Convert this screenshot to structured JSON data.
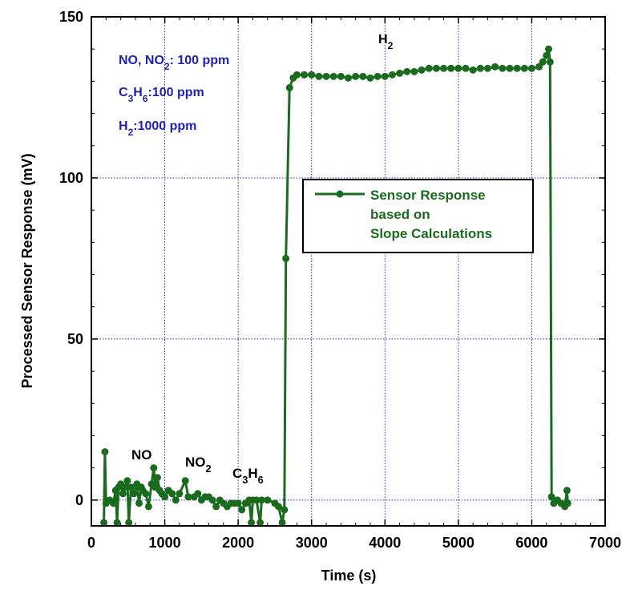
{
  "chart_data": {
    "type": "line",
    "x_label": "Time (s)",
    "y_label": "Processed Sensor Response (mV)",
    "xlim": [
      0,
      7000
    ],
    "xticks": [
      0,
      1000,
      2000,
      3000,
      4000,
      5000,
      6000,
      7000
    ],
    "ylim": [
      -8,
      150
    ],
    "yticks": [
      0,
      50,
      100,
      150
    ],
    "grid": true,
    "grid_color": "#1f2fb0",
    "legend": "upper right",
    "x": [
      170,
      185,
      200,
      250,
      300,
      330,
      350,
      370,
      400,
      430,
      460,
      490,
      510,
      540,
      580,
      620,
      650,
      680,
      700,
      740,
      780,
      820,
      850,
      870,
      900,
      930,
      960,
      1000,
      1050,
      1100,
      1150,
      1200,
      1280,
      1320,
      1400,
      1450,
      1500,
      1550,
      1600,
      1650,
      1700,
      1750,
      1800,
      1850,
      1900,
      1950,
      2000,
      2050,
      2100,
      2150,
      2180,
      2200,
      2250,
      2300,
      2320,
      2400,
      2500,
      2550,
      2600,
      2630,
      2650,
      2700,
      2750,
      2800,
      2900,
      3000,
      3100,
      3200,
      3300,
      3400,
      3500,
      3600,
      3700,
      3800,
      3900,
      4000,
      4100,
      4200,
      4300,
      4400,
      4500,
      4600,
      4700,
      4800,
      4900,
      5000,
      5100,
      5200,
      5300,
      5400,
      5500,
      5600,
      5700,
      5800,
      5900,
      6000,
      6100,
      6150,
      6200,
      6230,
      6250,
      6270,
      6300,
      6350,
      6400,
      6450,
      6480,
      6490
    ],
    "series": [
      {
        "name": "Sensor Response\nbased on\nSlope Calculations",
        "color": "#1b6b1f",
        "values": [
          -7,
          15,
          -1,
          0,
          -1,
          3,
          -7,
          4,
          5,
          2,
          4,
          6,
          -7,
          4,
          2,
          5,
          -1,
          4,
          3,
          2,
          -2,
          5,
          10,
          4,
          7,
          3,
          2,
          1,
          3,
          2,
          0,
          2,
          6,
          1,
          1,
          2,
          0,
          1,
          1,
          0,
          -2,
          0,
          -1,
          -2,
          -1,
          -1,
          -1,
          -3,
          -1,
          0,
          -7,
          0,
          0,
          -7,
          0,
          0,
          -1,
          -2,
          -7,
          -3,
          75,
          128,
          131,
          132,
          132,
          132,
          131.5,
          131.5,
          131.5,
          131.5,
          131,
          131.5,
          131.5,
          131,
          131.5,
          131.5,
          132,
          132.5,
          133,
          133,
          133.5,
          134,
          134,
          134,
          134,
          134,
          134,
          133.5,
          134,
          134,
          134.5,
          134,
          134,
          134,
          134,
          134,
          134.5,
          136,
          138,
          140,
          136,
          1,
          -1,
          0,
          -1,
          -2,
          3,
          -1
        ]
      }
    ],
    "annotations": [
      {
        "color": "#1f1fb0",
        "parts": [
          {
            "text": "NO, NO"
          },
          {
            "text": "2",
            "sub": true
          },
          {
            "text": ": 100 ppm"
          }
        ]
      },
      {
        "color": "#1f1fb0",
        "parts": [
          {
            "text": "C"
          },
          {
            "text": "3",
            "sub": true
          },
          {
            "text": "H"
          },
          {
            "text": "6",
            "sub": true
          },
          {
            "text": ":100 ppm"
          }
        ]
      },
      {
        "color": "#1f1fb0",
        "parts": [
          {
            "text": "H"
          },
          {
            "text": "2",
            "sub": true
          },
          {
            "text": ":1000 ppm"
          }
        ]
      },
      {
        "color": "#000000",
        "parts": [
          {
            "text": "H"
          },
          {
            "text": "2",
            "sub": true
          }
        ]
      },
      {
        "color": "#000000",
        "parts": [
          {
            "text": "NO"
          }
        ]
      },
      {
        "color": "#000000",
        "parts": [
          {
            "text": "NO"
          },
          {
            "text": "2",
            "sub": true
          }
        ]
      },
      {
        "color": "#000000",
        "parts": [
          {
            "text": "C"
          },
          {
            "text": "3",
            "sub": true
          },
          {
            "text": "H"
          },
          {
            "text": "6",
            "sub": true
          }
        ]
      }
    ]
  }
}
